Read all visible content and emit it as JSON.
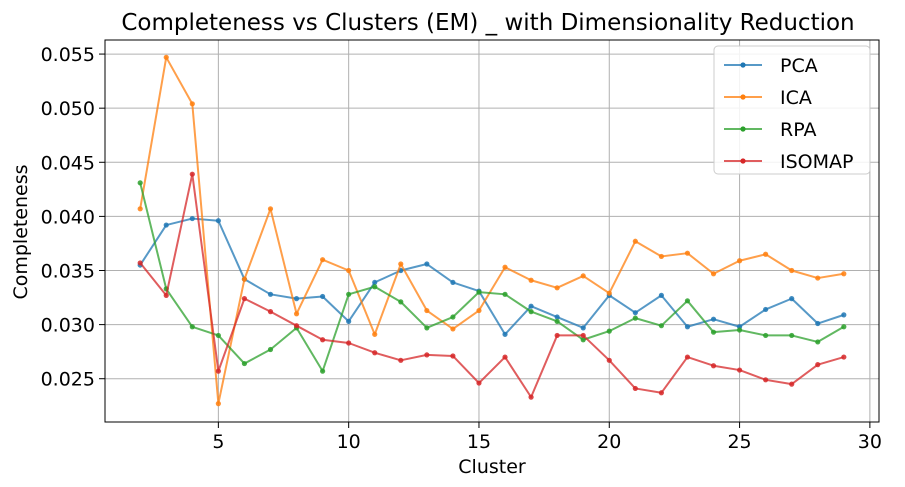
{
  "chart_data": {
    "type": "line",
    "title": "Completeness vs Clusters (EM) _ with Dimensionality Reduction",
    "xlabel": "Cluster",
    "ylabel": "Completeness",
    "xlim": [
      0.65,
      30.35
    ],
    "ylim": [
      0.021,
      0.0563
    ],
    "xticks": [
      5,
      10,
      15,
      20,
      25,
      30
    ],
    "yticks": [
      0.025,
      0.03,
      0.035,
      0.04,
      0.045,
      0.05,
      0.055
    ],
    "ytick_labels": [
      "0.025",
      "0.030",
      "0.035",
      "0.040",
      "0.045",
      "0.050",
      "0.055"
    ],
    "grid": true,
    "legend_position": "top-right",
    "x": [
      2,
      3,
      4,
      5,
      6,
      7,
      8,
      9,
      10,
      11,
      12,
      13,
      14,
      15,
      16,
      17,
      18,
      19,
      20,
      21,
      22,
      23,
      24,
      25,
      26,
      27,
      28,
      29
    ],
    "series": [
      {
        "name": "PCA",
        "color": "#1f77b4",
        "values": [
          0.0355,
          0.0392,
          0.0398,
          0.0396,
          0.0342,
          0.0328,
          0.0324,
          0.0326,
          0.0303,
          0.0339,
          0.035,
          0.0356,
          0.0339,
          0.0331,
          0.0291,
          0.0317,
          0.0307,
          0.0297,
          0.0327,
          0.0311,
          0.0327,
          0.0298,
          0.0305,
          0.0298,
          0.0314,
          0.0324,
          0.0301,
          0.0309
        ]
      },
      {
        "name": "ICA",
        "color": "#ff7f0e",
        "values": [
          0.0407,
          0.0547,
          0.0504,
          0.0227,
          0.0342,
          0.0407,
          0.031,
          0.036,
          0.035,
          0.0291,
          0.0356,
          0.0313,
          0.0296,
          0.0313,
          0.0353,
          0.0341,
          0.0334,
          0.0345,
          0.0329,
          0.0377,
          0.0363,
          0.0366,
          0.0347,
          0.0359,
          0.0365,
          0.035,
          0.0343,
          0.0347
        ]
      },
      {
        "name": "RPA",
        "color": "#2ca02c",
        "values": [
          0.0431,
          0.0333,
          0.0298,
          0.029,
          0.0264,
          0.0277,
          0.0297,
          0.0257,
          0.0328,
          0.0335,
          0.0321,
          0.0297,
          0.0307,
          0.033,
          0.0328,
          0.0312,
          0.0303,
          0.0286,
          0.0294,
          0.0306,
          0.0299,
          0.0322,
          0.0293,
          0.0295,
          0.029,
          0.029,
          0.0284,
          0.0298
        ]
      },
      {
        "name": "ISOMAP",
        "color": "#d62728",
        "values": [
          0.0357,
          0.0327,
          0.0439,
          0.0257,
          0.0324,
          0.0312,
          0.0299,
          0.0286,
          0.0283,
          0.0274,
          0.0267,
          0.0272,
          0.0271,
          0.0246,
          0.027,
          0.0233,
          0.029,
          0.029,
          0.0267,
          0.0241,
          0.0237,
          0.027,
          0.0262,
          0.0258,
          0.0249,
          0.0245,
          0.0263,
          0.027
        ]
      }
    ]
  }
}
